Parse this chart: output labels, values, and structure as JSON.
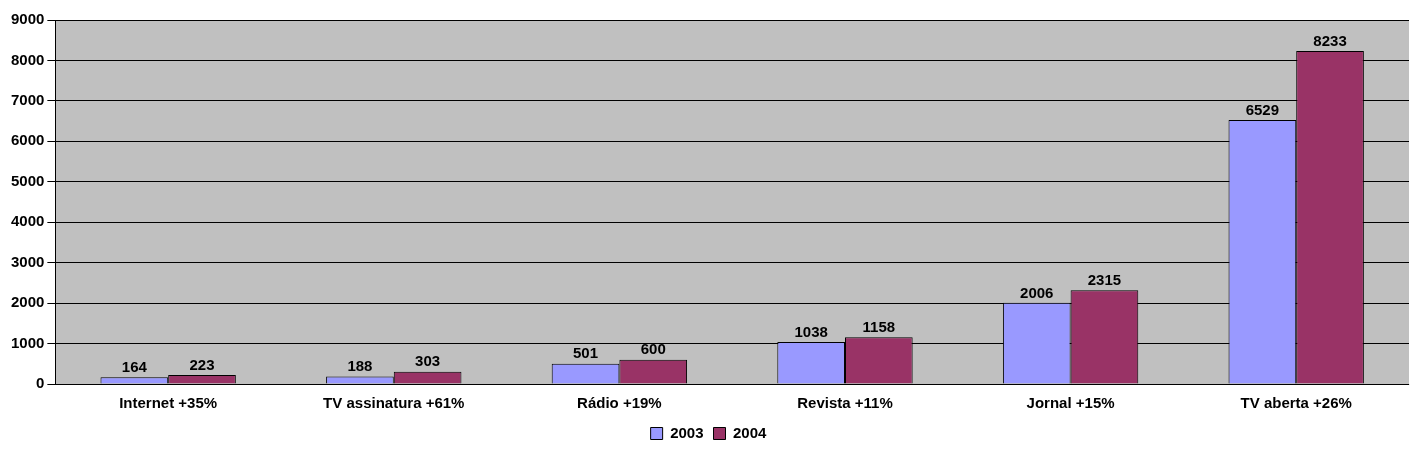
{
  "chart_data": {
    "type": "bar",
    "categories": [
      "Internet +35%",
      "TV assinatura +61%",
      "Rádio +19%",
      "Revista +11%",
      "Jornal +15%",
      "TV aberta +26%"
    ],
    "series": [
      {
        "name": "2003",
        "color": "#9999ff",
        "values": [
          164,
          188,
          501,
          1038,
          2006,
          6529
        ]
      },
      {
        "name": "2004",
        "color": "#993366",
        "values": [
          223,
          303,
          600,
          1158,
          2315,
          8233
        ]
      }
    ],
    "ylim": [
      0,
      9000
    ],
    "yticks": [
      0,
      1000,
      2000,
      3000,
      4000,
      5000,
      6000,
      7000,
      8000,
      9000
    ],
    "grid": "y",
    "legend": "bottom",
    "data_labels": true
  }
}
